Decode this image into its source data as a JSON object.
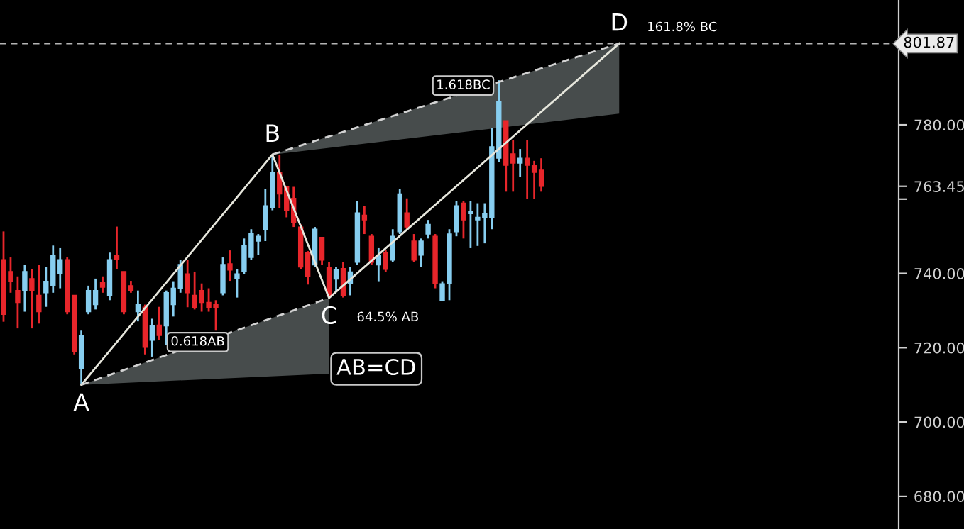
{
  "chart_data": {
    "type": "candlestick",
    "categories": [
      null,
      null,
      null,
      null,
      null,
      null,
      null,
      null,
      null,
      null,
      null,
      null,
      null,
      null,
      null,
      null,
      null,
      null,
      null,
      null,
      null,
      null,
      null,
      null,
      null,
      null,
      null,
      null,
      null,
      null,
      null,
      null,
      null,
      null,
      null,
      null,
      null,
      null,
      null,
      null,
      null,
      null,
      null,
      null,
      null,
      null,
      null,
      null,
      null,
      null,
      null,
      null,
      null,
      null,
      null,
      null,
      null,
      null,
      null,
      null,
      null,
      null,
      null,
      null,
      null,
      null,
      null,
      null,
      null,
      null,
      null,
      null,
      null,
      null,
      null,
      null,
      null,
      null,
      null,
      null,
      null,
      null,
      null,
      null,
      null,
      null,
      null,
      null,
      null,
      null,
      null,
      null,
      null,
      null,
      null,
      null,
      null,
      null,
      null,
      null,
      null,
      null,
      null,
      null,
      null,
      null,
      null,
      null,
      null,
      null,
      null,
      null,
      null,
      null,
      null,
      null,
      null,
      null,
      null,
      null,
      null,
      null,
      null,
      null,
      null,
      null,
      null
    ],
    "ohlc": [
      [
        743.7,
        751.3,
        727,
        729
      ],
      [
        740.5,
        744.3,
        734.8,
        737.9
      ],
      [
        735.4,
        739.2,
        725.2,
        732.2
      ],
      [
        735.4,
        742.4,
        729.7,
        740.5
      ],
      [
        738.6,
        741.1,
        725.2,
        735.4
      ],
      [
        734.1,
        742.4,
        726.5,
        729.7
      ],
      [
        734.8,
        741.8,
        731,
        737.9
      ],
      [
        736.7,
        747.5,
        734.8,
        744.9
      ],
      [
        739.9,
        746.8,
        736,
        743.7
      ],
      [
        743.7,
        744.3,
        729,
        729.7
      ],
      [
        734.1,
        734.1,
        718.2,
        718.9
      ],
      [
        714.4,
        724.6,
        710,
        723.3
      ],
      [
        729.7,
        736.7,
        729,
        735.4
      ],
      [
        731.6,
        738.6,
        730.3,
        735.4
      ],
      [
        737.6,
        739.2,
        734.8,
        736.3
      ],
      [
        734.1,
        745.6,
        732.8,
        743.7
      ],
      [
        744.9,
        752.6,
        741.1,
        743.7
      ],
      [
        740.5,
        740.5,
        729,
        729.7
      ],
      [
        736.7,
        738,
        734.8,
        735.4
      ],
      [
        729.7,
        735.4,
        727.1,
        731.6
      ],
      [
        730.9,
        731.6,
        718.2,
        720.1
      ],
      [
        722,
        727.8,
        717.6,
        725.9
      ],
      [
        726.1,
        731,
        722,
        723.3
      ],
      [
        725.9,
        735.4,
        720.8,
        734.8
      ],
      [
        731.6,
        737.9,
        728.4,
        736
      ],
      [
        736,
        743.7,
        734.8,
        742.4
      ],
      [
        739.9,
        743.7,
        730.9,
        734.8
      ],
      [
        734.1,
        740.5,
        730.3,
        730.9
      ],
      [
        735.4,
        737.3,
        729.7,
        732.2
      ],
      [
        732.2,
        736,
        729.7,
        730.9
      ],
      [
        731.6,
        732.8,
        724.6,
        730.7
      ],
      [
        734.8,
        744.3,
        734.1,
        742.4
      ],
      [
        742.6,
        746.2,
        738,
        740.9
      ],
      [
        738.6,
        741.1,
        733.5,
        739.9
      ],
      [
        740.5,
        749.4,
        739.9,
        747.5
      ],
      [
        744.3,
        751.9,
        743.7,
        750.7
      ],
      [
        748.7,
        750.6,
        744.9,
        750
      ],
      [
        751.9,
        762.7,
        748.7,
        758.2
      ],
      [
        757.6,
        771.6,
        757,
        767.1
      ],
      [
        767.1,
        772,
        757.6,
        761.4
      ],
      [
        763.3,
        763.3,
        755.1,
        757
      ],
      [
        760.2,
        763.3,
        752.5,
        753.8
      ],
      [
        752.5,
        753.2,
        741.1,
        741.7
      ],
      [
        745.5,
        746,
        737,
        739.2
      ],
      [
        742.3,
        752.5,
        741.7,
        751.9
      ],
      [
        749.7,
        749.7,
        742.3,
        743.6
      ],
      [
        741.7,
        743,
        733.4,
        734.1
      ],
      [
        738.5,
        741.7,
        735.3,
        741.1
      ],
      [
        741.3,
        743,
        733.5,
        734.1
      ],
      [
        737.2,
        741.7,
        734.1,
        740.4
      ],
      [
        743,
        759.5,
        742.3,
        756.3
      ],
      [
        755.7,
        758.2,
        750.6,
        754.4
      ],
      [
        750,
        750.6,
        742.3,
        743
      ],
      [
        742.3,
        746.8,
        737.9,
        744.9
      ],
      [
        745.5,
        746.2,
        740.4,
        741.1
      ],
      [
        743.6,
        751.9,
        743,
        750
      ],
      [
        751.2,
        762.7,
        750.6,
        761.4
      ],
      [
        756.3,
        760.2,
        751.9,
        752.5
      ],
      [
        748.7,
        750.6,
        743,
        743.6
      ],
      [
        744.9,
        749.4,
        741.7,
        748.7
      ],
      [
        750.6,
        754.4,
        749.4,
        753.2
      ],
      [
        750,
        750.6,
        736,
        737.2
      ],
      [
        732.8,
        737.9,
        732.8,
        737.2
      ],
      [
        737.2,
        751.9,
        732.8,
        750.6
      ],
      [
        751.2,
        759.5,
        750,
        758.2
      ],
      [
        758.9,
        759.5,
        749.4,
        754.4
      ],
      [
        756.1,
        759.5,
        746.8,
        756.6
      ],
      [
        754.4,
        758.9,
        747.4,
        755.1
      ],
      [
        755.1,
        758.9,
        748.1,
        756.1
      ],
      [
        755.1,
        779.2,
        751.9,
        774.1
      ],
      [
        771,
        792,
        770,
        786.2
      ],
      [
        781.1,
        781.1,
        762,
        769.1
      ],
      [
        772.2,
        776,
        762,
        769.7
      ],
      [
        769.7,
        773.5,
        765.9,
        771
      ],
      [
        771,
        776,
        760.1,
        769.1
      ],
      [
        769.1,
        770.3,
        760.1,
        767.2
      ],
      [
        767.8,
        771,
        762,
        763.45
      ],
      null,
      null,
      null,
      null,
      null,
      null,
      null,
      null,
      null,
      null,
      null,
      null,
      null,
      null,
      null,
      null,
      null,
      null,
      null,
      null,
      null,
      null,
      null,
      null,
      null,
      null,
      null,
      null,
      null,
      null,
      null,
      null,
      null,
      null,
      null,
      null,
      null,
      null,
      null,
      null,
      null,
      null,
      null,
      null,
      null,
      null,
      null,
      null,
      null,
      null
    ],
    "colors": [
      "#e8262b",
      "#e8262b",
      "#e8262b",
      "#87cef0",
      "#e8262b",
      "#e8262b",
      "#87cef0",
      "#87cef0",
      "#87cef0",
      "#e8262b",
      "#e8262b",
      "#87cef0",
      "#87cef0",
      "#87cef0",
      "#e8262b",
      "#87cef0",
      "#e8262b",
      "#e8262b",
      "#e8262b",
      "#87cef0",
      "#e8262b",
      "#87cef0",
      "#e8262b",
      "#87cef0",
      "#87cef0",
      "#87cef0",
      "#e8262b",
      "#e8262b",
      "#e8262b",
      "#e8262b",
      "#e8262b",
      "#87cef0",
      "#e8262b",
      "#87cef0",
      "#87cef0",
      "#87cef0",
      "#87cef0",
      "#87cef0",
      "#87cef0",
      "#e8262b",
      "#e8262b",
      "#e8262b",
      "#e8262b",
      "#e8262b",
      "#87cef0",
      "#e8262b",
      "#e8262b",
      "#87cef0",
      "#e8262b",
      "#87cef0",
      "#87cef0",
      "#e8262b",
      "#e8262b",
      "#87cef0",
      "#e8262b",
      "#87cef0",
      "#87cef0",
      "#e8262b",
      "#e8262b",
      "#87cef0",
      "#87cef0",
      "#e8262b",
      "#87cef0",
      "#87cef0",
      "#87cef0",
      "#e8262b",
      "#87cef0",
      "#87cef0",
      "#87cef0",
      "#87cef0",
      "#87cef0",
      "#e8262b",
      "#e8262b",
      "#87cef0",
      "#e8262b",
      "#e8262b",
      "#e8262b",
      null,
      null,
      null,
      null,
      null,
      null,
      null,
      null,
      null,
      null,
      null,
      null,
      null,
      null,
      null,
      null,
      null,
      null,
      null,
      null,
      null,
      null,
      null,
      null,
      null,
      null,
      null,
      null,
      null,
      null,
      null,
      null,
      null,
      null,
      null,
      null,
      null,
      null,
      null,
      null,
      null,
      null,
      null,
      null,
      null,
      null,
      null,
      null,
      null,
      null
    ],
    "series": [
      {
        "type": "line",
        "color": "#e6e6dc",
        "line_style": "solid",
        "values": [
          null,
          null,
          null,
          null,
          null,
          null,
          null,
          null,
          null,
          null,
          null,
          710,
          null,
          null,
          null,
          null,
          null,
          null,
          null,
          null,
          null,
          null,
          null,
          null,
          null,
          null,
          null,
          null,
          null,
          null,
          null,
          null,
          null,
          null,
          null,
          null,
          null,
          null,
          772,
          null,
          null,
          null,
          null,
          null,
          null,
          null,
          733.4,
          null,
          null,
          null,
          null,
          null,
          null,
          null,
          null,
          null,
          null,
          null,
          null,
          null,
          null,
          null,
          null,
          null,
          null,
          null,
          null,
          null,
          null,
          null,
          null,
          null,
          null,
          null,
          null,
          null,
          null,
          null,
          null,
          null,
          null,
          null,
          null,
          null,
          null,
          null,
          null,
          801.9,
          null,
          null,
          null,
          null,
          null,
          null,
          null,
          null,
          null,
          null,
          null,
          null,
          null,
          null,
          null,
          null,
          null,
          null,
          null,
          null,
          null,
          null,
          null,
          null,
          null,
          null,
          null,
          null,
          null,
          null,
          null,
          null,
          null,
          null,
          null,
          null,
          null,
          null,
          null
        ]
      },
      {
        "type": "line",
        "color": "#d2d2d2",
        "line_style": "dashed",
        "values": [
          null,
          null,
          null,
          null,
          null,
          null,
          null,
          null,
          null,
          null,
          null,
          710,
          null,
          null,
          null,
          null,
          null,
          null,
          null,
          null,
          null,
          null,
          null,
          null,
          null,
          null,
          null,
          null,
          null,
          null,
          null,
          null,
          null,
          null,
          null,
          null,
          null,
          null,
          null,
          null,
          null,
          null,
          null,
          null,
          null,
          null,
          733.4,
          null,
          null,
          null,
          null,
          null,
          null,
          null,
          null,
          null,
          null,
          null,
          null,
          null,
          null,
          null,
          null,
          null,
          null,
          null,
          null,
          null,
          null,
          null,
          null,
          null,
          null,
          null,
          null,
          null,
          null,
          null,
          null,
          null,
          null,
          null,
          null,
          null,
          null,
          null,
          null,
          null,
          null,
          null,
          null,
          null,
          null,
          null,
          null,
          null,
          null,
          null,
          null,
          null,
          null,
          null,
          null,
          null,
          null,
          null,
          null,
          null,
          null,
          null,
          null,
          null,
          null,
          null,
          null,
          null,
          null,
          null,
          null,
          null,
          null,
          null,
          null,
          null,
          null,
          null,
          null
        ],
        "lower": [
          null,
          null,
          null,
          null,
          null,
          null,
          null,
          null,
          null,
          null,
          null,
          710,
          null,
          null,
          null,
          null,
          null,
          null,
          null,
          null,
          null,
          null,
          null,
          null,
          null,
          null,
          null,
          null,
          null,
          null,
          null,
          null,
          null,
          null,
          null,
          null,
          null,
          null,
          null,
          null,
          null,
          null,
          null,
          null,
          null,
          null,
          713,
          null,
          null,
          null,
          null,
          null,
          null,
          null,
          null,
          null,
          null,
          null,
          null,
          null,
          null,
          null,
          null,
          null,
          null,
          null,
          null,
          null,
          null,
          null,
          null,
          null,
          null,
          null,
          null,
          null,
          null,
          null,
          null,
          null,
          null,
          null,
          null,
          null,
          null,
          null,
          null,
          null,
          null,
          null,
          null,
          null,
          null,
          null,
          null,
          null,
          null,
          null,
          null,
          null,
          null,
          null,
          null,
          null,
          null,
          null,
          null,
          null,
          null,
          null,
          null,
          null,
          null,
          null,
          null,
          null,
          null,
          null,
          null,
          null,
          null,
          null,
          null,
          null,
          null,
          null,
          null
        ],
        "upper": [
          null,
          null,
          null,
          null,
          null,
          null,
          null,
          null,
          null,
          null,
          null,
          710,
          null,
          null,
          null,
          null,
          null,
          null,
          null,
          null,
          null,
          null,
          null,
          null,
          null,
          null,
          null,
          null,
          null,
          null,
          null,
          null,
          null,
          null,
          null,
          null,
          null,
          null,
          null,
          null,
          null,
          null,
          null,
          null,
          null,
          null,
          733.4,
          null,
          null,
          null,
          null,
          null,
          null,
          null,
          null,
          null,
          null,
          null,
          null,
          null,
          null,
          null,
          null,
          null,
          null,
          null,
          null,
          null,
          null,
          null,
          null,
          null,
          null,
          null,
          null,
          null,
          null,
          null,
          null,
          null,
          null,
          null,
          null,
          null,
          null,
          null,
          null,
          null,
          null,
          null,
          null,
          null,
          null,
          null,
          null,
          null,
          null,
          null,
          null,
          null,
          null,
          null,
          null,
          null,
          null,
          null,
          null,
          null,
          null,
          null,
          null,
          null,
          null,
          null,
          null,
          null,
          null,
          null,
          null,
          null,
          null,
          null,
          null,
          null,
          null,
          null,
          null
        ]
      },
      {
        "type": "line",
        "color": "#d2d2d2",
        "line_style": "dashed",
        "values": [
          null,
          null,
          null,
          null,
          null,
          null,
          null,
          null,
          null,
          null,
          null,
          null,
          null,
          null,
          null,
          null,
          null,
          null,
          null,
          null,
          null,
          null,
          null,
          null,
          null,
          null,
          null,
          null,
          null,
          null,
          null,
          null,
          null,
          null,
          null,
          null,
          null,
          null,
          772,
          null,
          null,
          null,
          null,
          null,
          null,
          null,
          null,
          null,
          null,
          null,
          null,
          null,
          null,
          null,
          null,
          null,
          null,
          null,
          null,
          null,
          null,
          null,
          null,
          null,
          null,
          null,
          null,
          null,
          null,
          null,
          null,
          null,
          null,
          null,
          null,
          null,
          null,
          null,
          null,
          null,
          null,
          null,
          null,
          null,
          null,
          null,
          null,
          801.9,
          null,
          null,
          null,
          null,
          null,
          null,
          null,
          null,
          null,
          null,
          null,
          null,
          null,
          null,
          null,
          null,
          null,
          null,
          null,
          null,
          null,
          null,
          null,
          null,
          null,
          null,
          null,
          null,
          null,
          null,
          null,
          null,
          null,
          null,
          null,
          null,
          null,
          null,
          null
        ],
        "lower": [
          null,
          null,
          null,
          null,
          null,
          null,
          null,
          null,
          null,
          null,
          null,
          null,
          null,
          null,
          null,
          null,
          null,
          null,
          null,
          null,
          null,
          null,
          null,
          null,
          null,
          null,
          null,
          null,
          null,
          null,
          null,
          null,
          null,
          null,
          null,
          null,
          null,
          null,
          772,
          null,
          null,
          null,
          null,
          null,
          null,
          null,
          null,
          null,
          null,
          null,
          null,
          null,
          null,
          null,
          null,
          null,
          null,
          null,
          null,
          null,
          null,
          null,
          null,
          null,
          null,
          null,
          null,
          null,
          null,
          null,
          null,
          null,
          null,
          null,
          null,
          null,
          null,
          null,
          null,
          null,
          null,
          null,
          null,
          null,
          null,
          null,
          null,
          783,
          null,
          null,
          null,
          null,
          null,
          null,
          null,
          null,
          null,
          null,
          null,
          null,
          null,
          null,
          null,
          null,
          null,
          null,
          null,
          null,
          null,
          null,
          null,
          null,
          null,
          null,
          null,
          null,
          null,
          null,
          null,
          null,
          null,
          null,
          null,
          null,
          null,
          null,
          null
        ],
        "upper": [
          null,
          null,
          null,
          null,
          null,
          null,
          null,
          null,
          null,
          null,
          null,
          null,
          null,
          null,
          null,
          null,
          null,
          null,
          null,
          null,
          null,
          null,
          null,
          null,
          null,
          null,
          null,
          null,
          null,
          null,
          null,
          null,
          null,
          null,
          null,
          null,
          null,
          null,
          772,
          null,
          null,
          null,
          null,
          null,
          null,
          null,
          null,
          null,
          null,
          null,
          null,
          null,
          null,
          null,
          null,
          null,
          null,
          null,
          null,
          null,
          null,
          null,
          null,
          null,
          null,
          null,
          null,
          null,
          null,
          null,
          null,
          null,
          null,
          null,
          null,
          null,
          null,
          null,
          null,
          null,
          null,
          null,
          null,
          null,
          null,
          null,
          null,
          801.9,
          null,
          null,
          null,
          null,
          null,
          null,
          null,
          null,
          null,
          null,
          null,
          null,
          null,
          null,
          null,
          null,
          null,
          null,
          null,
          null,
          null,
          null,
          null,
          null,
          null,
          null,
          null,
          null,
          null,
          null,
          null,
          null,
          null,
          null,
          null,
          null,
          null,
          null,
          null
        ]
      }
    ],
    "annotations": [
      "A",
      "B",
      "C",
      "D",
      "64.5% AB",
      "161.8% BC",
      "0.618AB",
      "1.618BC",
      "AB=CD"
    ],
    "ref_lines": [
      {
        "axis": "y",
        "value": 801.87,
        "label": "801.87",
        "color": "#b4b4b4",
        "line_style": "dashed"
      }
    ],
    "ylim": [
      671.2,
      813.6
    ],
    "yticks": [
      {
        "value": 680,
        "label": "680.00"
      },
      {
        "value": 700,
        "label": "700.00"
      },
      {
        "value": 720,
        "label": "720.00"
      },
      {
        "value": 740,
        "label": "740.00"
      },
      {
        "value": 760,
        "label": null
      },
      {
        "value": 763.45,
        "label": "763.45"
      },
      {
        "value": 780,
        "label": "780.00"
      }
    ],
    "tick_labels": "y",
    "grid": false,
    "legend": false
  }
}
